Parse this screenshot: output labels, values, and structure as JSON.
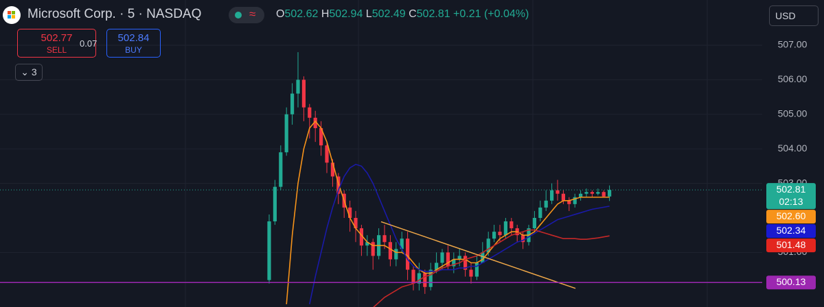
{
  "header": {
    "title": "Microsoft Corp. · 5 · NASDAQ",
    "o_label": "O",
    "o": "502.62",
    "h_label": "H",
    "h": "502.94",
    "l_label": "L",
    "l": "502.49",
    "c_label": "C",
    "c": "502.81",
    "change": "+0.21 (+0.04%)",
    "sell_price": "502.77",
    "sell": "SELL",
    "spread": "0.07",
    "buy_price": "502.84",
    "buy": "BUY",
    "indicators": "3",
    "currency": "USD"
  },
  "chart_data": {
    "type": "candlestick",
    "up_color": "#22ab94",
    "down_color": "#f23645",
    "open": [
      500.2,
      501.9,
      502.9,
      503.9,
      505.0,
      505.6,
      506.0,
      505.2,
      504.9,
      504.6,
      504.1,
      503.6,
      503.2,
      502.7,
      502.3,
      502.0,
      501.7,
      501.2,
      501.3,
      500.9,
      501.5,
      501.3,
      500.8,
      501.1,
      501.4,
      500.5,
      500.1,
      500.4,
      500.0,
      500.5,
      500.7,
      501.0,
      500.6,
      500.8,
      500.9,
      500.5,
      500.3,
      500.7,
      501.0,
      501.4,
      501.6,
      501.5,
      501.9,
      501.7,
      501.5,
      501.3,
      501.7,
      502.0,
      502.3,
      502.5,
      502.8,
      502.7,
      502.5,
      502.4,
      502.6,
      502.7,
      502.75,
      502.7,
      502.75,
      502.62
    ],
    "high": [
      502.1,
      503.1,
      504.1,
      505.2,
      505.9,
      506.8,
      506.1,
      505.3,
      505.1,
      504.8,
      504.2,
      503.7,
      503.3,
      502.8,
      502.5,
      502.2,
      501.8,
      501.5,
      501.4,
      501.7,
      501.8,
      501.5,
      501.3,
      501.6,
      501.6,
      500.6,
      500.7,
      500.5,
      500.7,
      501.0,
      501.1,
      501.2,
      501.0,
      501.1,
      501.0,
      500.7,
      500.9,
      501.3,
      501.6,
      501.8,
      501.8,
      502.0,
      502.0,
      501.8,
      501.6,
      501.8,
      502.2,
      502.5,
      502.8,
      503.0,
      503.1,
      502.8,
      502.6,
      502.7,
      502.8,
      502.85,
      502.8,
      502.85,
      502.8,
      502.94
    ],
    "low": [
      500.1,
      501.8,
      502.8,
      503.8,
      504.7,
      505.2,
      504.8,
      504.3,
      504.2,
      503.8,
      503.3,
      502.9,
      502.4,
      502.0,
      501.6,
      501.3,
      500.9,
      500.9,
      500.5,
      500.8,
      501.1,
      500.6,
      500.6,
      501.0,
      500.2,
      499.9,
      499.9,
      499.8,
      499.9,
      500.4,
      500.5,
      500.5,
      500.4,
      500.6,
      500.3,
      500.1,
      500.2,
      500.7,
      500.9,
      501.3,
      501.3,
      501.4,
      501.5,
      501.3,
      501.1,
      501.2,
      501.6,
      501.9,
      502.2,
      502.4,
      502.5,
      502.4,
      502.2,
      502.3,
      502.5,
      502.6,
      502.6,
      502.65,
      502.6,
      502.49
    ],
    "close": [
      501.9,
      502.9,
      503.9,
      505.0,
      505.6,
      506.0,
      505.2,
      504.9,
      504.6,
      504.1,
      503.6,
      503.2,
      502.7,
      502.3,
      502.0,
      501.7,
      501.2,
      501.3,
      500.9,
      501.5,
      501.3,
      500.8,
      501.1,
      501.4,
      500.5,
      500.1,
      500.4,
      500.0,
      500.5,
      500.7,
      501.0,
      500.6,
      500.8,
      500.9,
      500.5,
      500.3,
      500.7,
      501.0,
      501.4,
      501.6,
      501.5,
      501.9,
      501.7,
      501.5,
      501.3,
      501.7,
      502.0,
      502.3,
      502.5,
      502.8,
      502.7,
      502.5,
      502.4,
      502.6,
      502.7,
      502.75,
      502.7,
      502.75,
      502.62,
      502.81
    ],
    "series": [
      {
        "color": "#f7931a",
        "values": [
          null,
          null,
          null,
          499.5,
          501.5,
          503.0,
          504.0,
          504.6,
          504.8,
          504.6,
          504.2,
          503.6,
          503.0,
          502.5,
          502.0,
          501.7,
          501.5,
          501.3,
          501.2,
          501.2,
          501.2,
          501.1,
          501.0,
          501.0,
          500.9,
          500.7,
          500.5,
          500.4,
          500.4,
          500.5,
          500.6,
          500.7,
          500.8,
          500.8,
          500.8,
          500.7,
          500.7,
          500.8,
          501.0,
          501.2,
          501.4,
          501.5,
          501.6,
          501.6,
          501.5,
          501.5,
          501.6,
          501.8,
          502.0,
          502.2,
          502.4,
          502.5,
          502.5,
          502.55,
          502.6,
          502.6,
          502.6,
          502.6,
          502.6,
          502.6
        ]
      },
      {
        "color": "#1a1aa8",
        "values": [
          null,
          null,
          null,
          null,
          null,
          null,
          null,
          499.5,
          500.3,
          501.0,
          501.7,
          502.3,
          502.8,
          503.2,
          503.45,
          503.55,
          503.5,
          503.3,
          503.0,
          502.6,
          502.2,
          501.8,
          501.4,
          501.1,
          500.8,
          500.6,
          500.5,
          500.45,
          500.45,
          500.45,
          500.5,
          500.5,
          500.5,
          500.55,
          500.55,
          500.6,
          500.6,
          500.7,
          500.8,
          500.9,
          501.0,
          501.1,
          501.2,
          501.3,
          501.35,
          501.45,
          501.55,
          501.65,
          501.75,
          501.85,
          501.95,
          502.0,
          502.05,
          502.1,
          502.15,
          502.2,
          502.25,
          502.28,
          502.31,
          502.34
        ]
      },
      {
        "color": "#c62828",
        "values": [
          null,
          null,
          null,
          null,
          null,
          null,
          null,
          null,
          null,
          null,
          null,
          null,
          null,
          null,
          null,
          null,
          null,
          null,
          499.4,
          499.55,
          499.7,
          499.8,
          499.9,
          500.0,
          500.05,
          500.1,
          500.2,
          500.3,
          500.35,
          500.45,
          500.55,
          500.6,
          500.65,
          500.7,
          500.8,
          500.85,
          500.9,
          501.0,
          501.1,
          501.2,
          501.3,
          501.4,
          501.5,
          501.55,
          501.6,
          501.65,
          501.65,
          501.6,
          501.55,
          501.5,
          501.45,
          501.4,
          501.4,
          501.4,
          501.38,
          501.38,
          501.4,
          501.42,
          501.45,
          501.48
        ]
      }
    ],
    "trendline": {
      "color": "#f0a848",
      "x": [
        19.4,
        53.1
      ],
      "values": [
        501.89,
        499.96
      ]
    },
    "badges": {
      "values": [
        502.81,
        502.6,
        502.34,
        501.48,
        500.13
      ],
      "value_labels": [
        "502.81",
        "502.60",
        "502.34",
        "501.48",
        "500.13"
      ],
      "colors": [
        "#22ab94",
        "#f7931a",
        "#1a1ad0",
        "#e3261f",
        "#9c27b0"
      ],
      "countdown": "02:13"
    },
    "ylim": [
      499.42,
      508.31
    ],
    "yticks": [
      {
        "value": 507,
        "label": "507.00"
      },
      {
        "value": 506,
        "label": "506.00"
      },
      {
        "value": 505,
        "label": "505.00"
      },
      {
        "value": 504,
        "label": "504.00"
      },
      {
        "value": 503,
        "label": "503.00"
      },
      {
        "value": 501,
        "label": "501.00"
      }
    ],
    "grid": true
  }
}
